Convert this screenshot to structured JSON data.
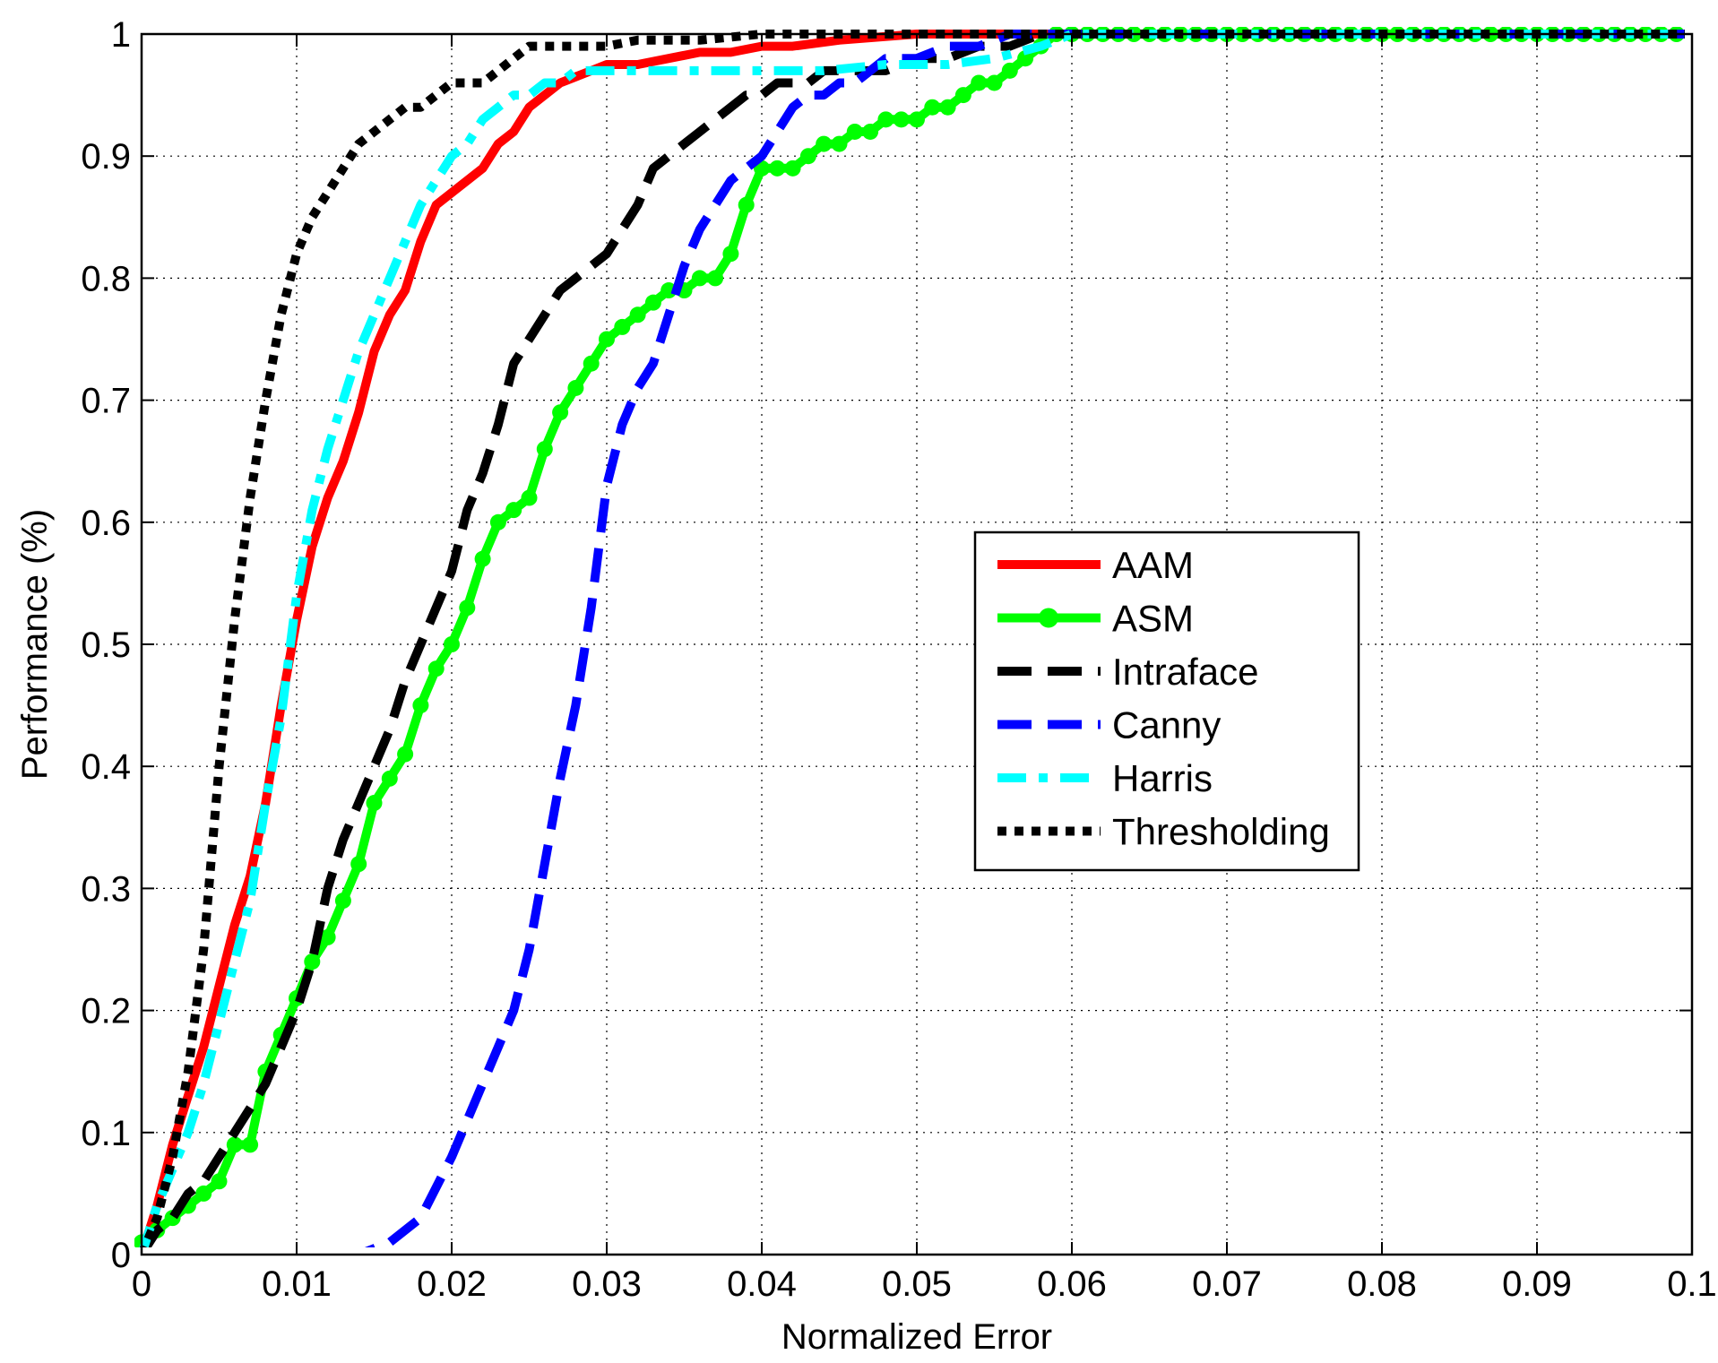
{
  "chart_data": {
    "type": "line",
    "title": "",
    "xlabel": "Normalized Error",
    "ylabel": "Performance (%)",
    "xlim": [
      0,
      0.1
    ],
    "ylim": [
      0,
      1
    ],
    "x_ticks": [
      "0",
      "0.01",
      "0.02",
      "0.03",
      "0.04",
      "0.05",
      "0.06",
      "0.07",
      "0.08",
      "0.09",
      "0.1"
    ],
    "y_ticks": [
      "0",
      "0.1",
      "0.2",
      "0.3",
      "0.4",
      "0.5",
      "0.6",
      "0.7",
      "0.8",
      "0.9",
      "1"
    ],
    "grid": true,
    "legend_position": "center-right",
    "series": [
      {
        "name": "AAM",
        "color": "#ff0000",
        "style": "solid",
        "marker": "none",
        "x": [
          0,
          0.001,
          0.002,
          0.003,
          0.004,
          0.005,
          0.006,
          0.007,
          0.008,
          0.009,
          0.01,
          0.011,
          0.012,
          0.013,
          0.014,
          0.015,
          0.016,
          0.017,
          0.018,
          0.019,
          0.02,
          0.021,
          0.022,
          0.023,
          0.024,
          0.025,
          0.026,
          0.027,
          0.028,
          0.029,
          0.03,
          0.032,
          0.034,
          0.036,
          0.038,
          0.04,
          0.042,
          0.045,
          0.05,
          0.055,
          0.06,
          0.07,
          0.08,
          0.09,
          0.1
        ],
        "y": [
          0,
          0.04,
          0.09,
          0.13,
          0.17,
          0.22,
          0.27,
          0.31,
          0.37,
          0.45,
          0.52,
          0.58,
          0.62,
          0.65,
          0.69,
          0.74,
          0.77,
          0.79,
          0.83,
          0.86,
          0.87,
          0.88,
          0.89,
          0.91,
          0.92,
          0.94,
          0.95,
          0.96,
          0.965,
          0.97,
          0.975,
          0.975,
          0.98,
          0.985,
          0.985,
          0.99,
          0.99,
          0.995,
          1,
          1,
          1,
          1,
          1,
          1,
          1
        ]
      },
      {
        "name": "ASM",
        "color": "#00ff00",
        "style": "solid",
        "marker": "circle",
        "x": [
          0,
          0.001,
          0.002,
          0.003,
          0.004,
          0.005,
          0.006,
          0.007,
          0.008,
          0.009,
          0.01,
          0.011,
          0.012,
          0.013,
          0.014,
          0.015,
          0.016,
          0.017,
          0.018,
          0.019,
          0.02,
          0.021,
          0.022,
          0.023,
          0.024,
          0.025,
          0.026,
          0.027,
          0.028,
          0.029,
          0.03,
          0.031,
          0.032,
          0.033,
          0.034,
          0.035,
          0.036,
          0.037,
          0.038,
          0.039,
          0.04,
          0.041,
          0.042,
          0.043,
          0.044,
          0.045,
          0.046,
          0.047,
          0.048,
          0.049,
          0.05,
          0.051,
          0.052,
          0.053,
          0.054,
          0.055,
          0.056,
          0.057,
          0.058,
          0.059,
          0.06,
          0.061,
          0.062,
          0.063,
          0.064,
          0.065,
          0.066,
          0.067,
          0.068,
          0.069,
          0.07,
          0.071,
          0.072,
          0.073,
          0.074,
          0.075,
          0.076,
          0.077,
          0.078,
          0.079,
          0.08,
          0.081,
          0.082,
          0.083,
          0.084,
          0.085,
          0.086,
          0.087,
          0.088,
          0.089,
          0.09,
          0.091,
          0.092,
          0.093,
          0.094,
          0.095,
          0.096,
          0.097,
          0.098,
          0.099,
          0.1
        ],
        "y": [
          0.01,
          0.02,
          0.03,
          0.04,
          0.05,
          0.06,
          0.09,
          0.09,
          0.15,
          0.18,
          0.21,
          0.24,
          0.26,
          0.29,
          0.32,
          0.37,
          0.39,
          0.41,
          0.45,
          0.48,
          0.5,
          0.53,
          0.57,
          0.6,
          0.61,
          0.62,
          0.66,
          0.69,
          0.71,
          0.73,
          0.75,
          0.76,
          0.77,
          0.78,
          0.79,
          0.79,
          0.8,
          0.8,
          0.82,
          0.86,
          0.89,
          0.89,
          0.89,
          0.9,
          0.91,
          0.91,
          0.92,
          0.92,
          0.93,
          0.93,
          0.93,
          0.94,
          0.94,
          0.95,
          0.96,
          0.96,
          0.97,
          0.98,
          0.99,
          1,
          1,
          1,
          1,
          1,
          1,
          1,
          1,
          1,
          1,
          1,
          1,
          1,
          1,
          1,
          1,
          1,
          1,
          1,
          1,
          1,
          1,
          1,
          1,
          1,
          1,
          1,
          1,
          1,
          1,
          1,
          1,
          1,
          1,
          1,
          1,
          1,
          1,
          1,
          1,
          1,
          1
        ]
      },
      {
        "name": "Intraface",
        "color": "#000000",
        "style": "dashed",
        "marker": "none",
        "x": [
          0,
          0.001,
          0.002,
          0.003,
          0.004,
          0.005,
          0.006,
          0.007,
          0.008,
          0.009,
          0.01,
          0.011,
          0.012,
          0.013,
          0.014,
          0.015,
          0.016,
          0.017,
          0.018,
          0.019,
          0.02,
          0.021,
          0.022,
          0.023,
          0.024,
          0.025,
          0.026,
          0.027,
          0.028,
          0.029,
          0.03,
          0.031,
          0.032,
          0.033,
          0.034,
          0.035,
          0.036,
          0.037,
          0.038,
          0.039,
          0.04,
          0.041,
          0.042,
          0.043,
          0.044,
          0.045,
          0.046,
          0.048,
          0.05,
          0.052,
          0.054,
          0.056,
          0.058,
          0.06,
          0.07,
          0.08,
          0.09,
          0.1
        ],
        "y": [
          0,
          0.02,
          0.03,
          0.05,
          0.06,
          0.08,
          0.1,
          0.12,
          0.14,
          0.17,
          0.2,
          0.24,
          0.3,
          0.34,
          0.37,
          0.4,
          0.43,
          0.47,
          0.5,
          0.53,
          0.56,
          0.61,
          0.64,
          0.68,
          0.73,
          0.75,
          0.77,
          0.79,
          0.8,
          0.81,
          0.82,
          0.84,
          0.86,
          0.89,
          0.9,
          0.91,
          0.92,
          0.93,
          0.94,
          0.95,
          0.95,
          0.96,
          0.96,
          0.96,
          0.97,
          0.97,
          0.97,
          0.97,
          0.98,
          0.98,
          0.99,
          0.99,
          1,
          1,
          1,
          1,
          1,
          1
        ]
      },
      {
        "name": "Canny",
        "color": "#0000ff",
        "style": "dashed",
        "marker": "none",
        "x": [
          0,
          0.005,
          0.01,
          0.014,
          0.016,
          0.018,
          0.02,
          0.022,
          0.024,
          0.025,
          0.026,
          0.027,
          0.028,
          0.029,
          0.03,
          0.031,
          0.032,
          0.033,
          0.034,
          0.035,
          0.036,
          0.037,
          0.038,
          0.039,
          0.04,
          0.041,
          0.042,
          0.043,
          0.044,
          0.045,
          0.046,
          0.047,
          0.048,
          0.049,
          0.05,
          0.052,
          0.054,
          0.056,
          0.058,
          0.06,
          0.07,
          0.08,
          0.09,
          0.1
        ],
        "y": [
          0,
          0,
          0,
          0,
          0.01,
          0.03,
          0.08,
          0.14,
          0.2,
          0.25,
          0.32,
          0.39,
          0.45,
          0.53,
          0.63,
          0.68,
          0.71,
          0.73,
          0.77,
          0.81,
          0.84,
          0.86,
          0.88,
          0.89,
          0.9,
          0.92,
          0.94,
          0.95,
          0.95,
          0.96,
          0.96,
          0.97,
          0.98,
          0.98,
          0.98,
          0.99,
          0.99,
          1,
          1,
          1,
          1,
          1,
          1,
          1
        ]
      },
      {
        "name": "Harris",
        "color": "#00ffff",
        "style": "dashdot",
        "marker": "none",
        "x": [
          0,
          0.001,
          0.002,
          0.003,
          0.004,
          0.005,
          0.006,
          0.007,
          0.008,
          0.009,
          0.01,
          0.011,
          0.012,
          0.013,
          0.014,
          0.015,
          0.016,
          0.017,
          0.018,
          0.019,
          0.02,
          0.021,
          0.022,
          0.023,
          0.024,
          0.025,
          0.026,
          0.027,
          0.028,
          0.03,
          0.032,
          0.034,
          0.036,
          0.038,
          0.04,
          0.044,
          0.048,
          0.052,
          0.055,
          0.058,
          0.06,
          0.07,
          0.08,
          0.09,
          0.1
        ],
        "y": [
          0,
          0.04,
          0.07,
          0.1,
          0.14,
          0.19,
          0.24,
          0.29,
          0.37,
          0.44,
          0.54,
          0.61,
          0.66,
          0.7,
          0.74,
          0.77,
          0.8,
          0.83,
          0.86,
          0.88,
          0.9,
          0.91,
          0.93,
          0.94,
          0.95,
          0.95,
          0.96,
          0.96,
          0.97,
          0.97,
          0.97,
          0.97,
          0.97,
          0.97,
          0.97,
          0.97,
          0.975,
          0.975,
          0.98,
          0.99,
          1,
          1,
          1,
          1,
          1
        ]
      },
      {
        "name": "Thresholding",
        "color": "#000000",
        "style": "dotted",
        "marker": "none",
        "x": [
          0,
          0.001,
          0.002,
          0.003,
          0.004,
          0.005,
          0.006,
          0.007,
          0.008,
          0.009,
          0.01,
          0.011,
          0.012,
          0.013,
          0.014,
          0.015,
          0.016,
          0.017,
          0.018,
          0.019,
          0.02,
          0.021,
          0.022,
          0.023,
          0.024,
          0.025,
          0.026,
          0.027,
          0.028,
          0.03,
          0.032,
          0.034,
          0.036,
          0.04,
          0.045,
          0.05,
          0.055,
          0.06,
          0.07,
          0.08,
          0.09,
          0.1
        ],
        "y": [
          0,
          0.03,
          0.08,
          0.15,
          0.25,
          0.4,
          0.52,
          0.62,
          0.7,
          0.77,
          0.82,
          0.85,
          0.87,
          0.89,
          0.91,
          0.92,
          0.93,
          0.94,
          0.94,
          0.95,
          0.96,
          0.96,
          0.96,
          0.97,
          0.98,
          0.99,
          0.99,
          0.99,
          0.99,
          0.99,
          0.995,
          0.995,
          0.995,
          1,
          1,
          1,
          1,
          1,
          1,
          1,
          1,
          1
        ]
      }
    ]
  }
}
